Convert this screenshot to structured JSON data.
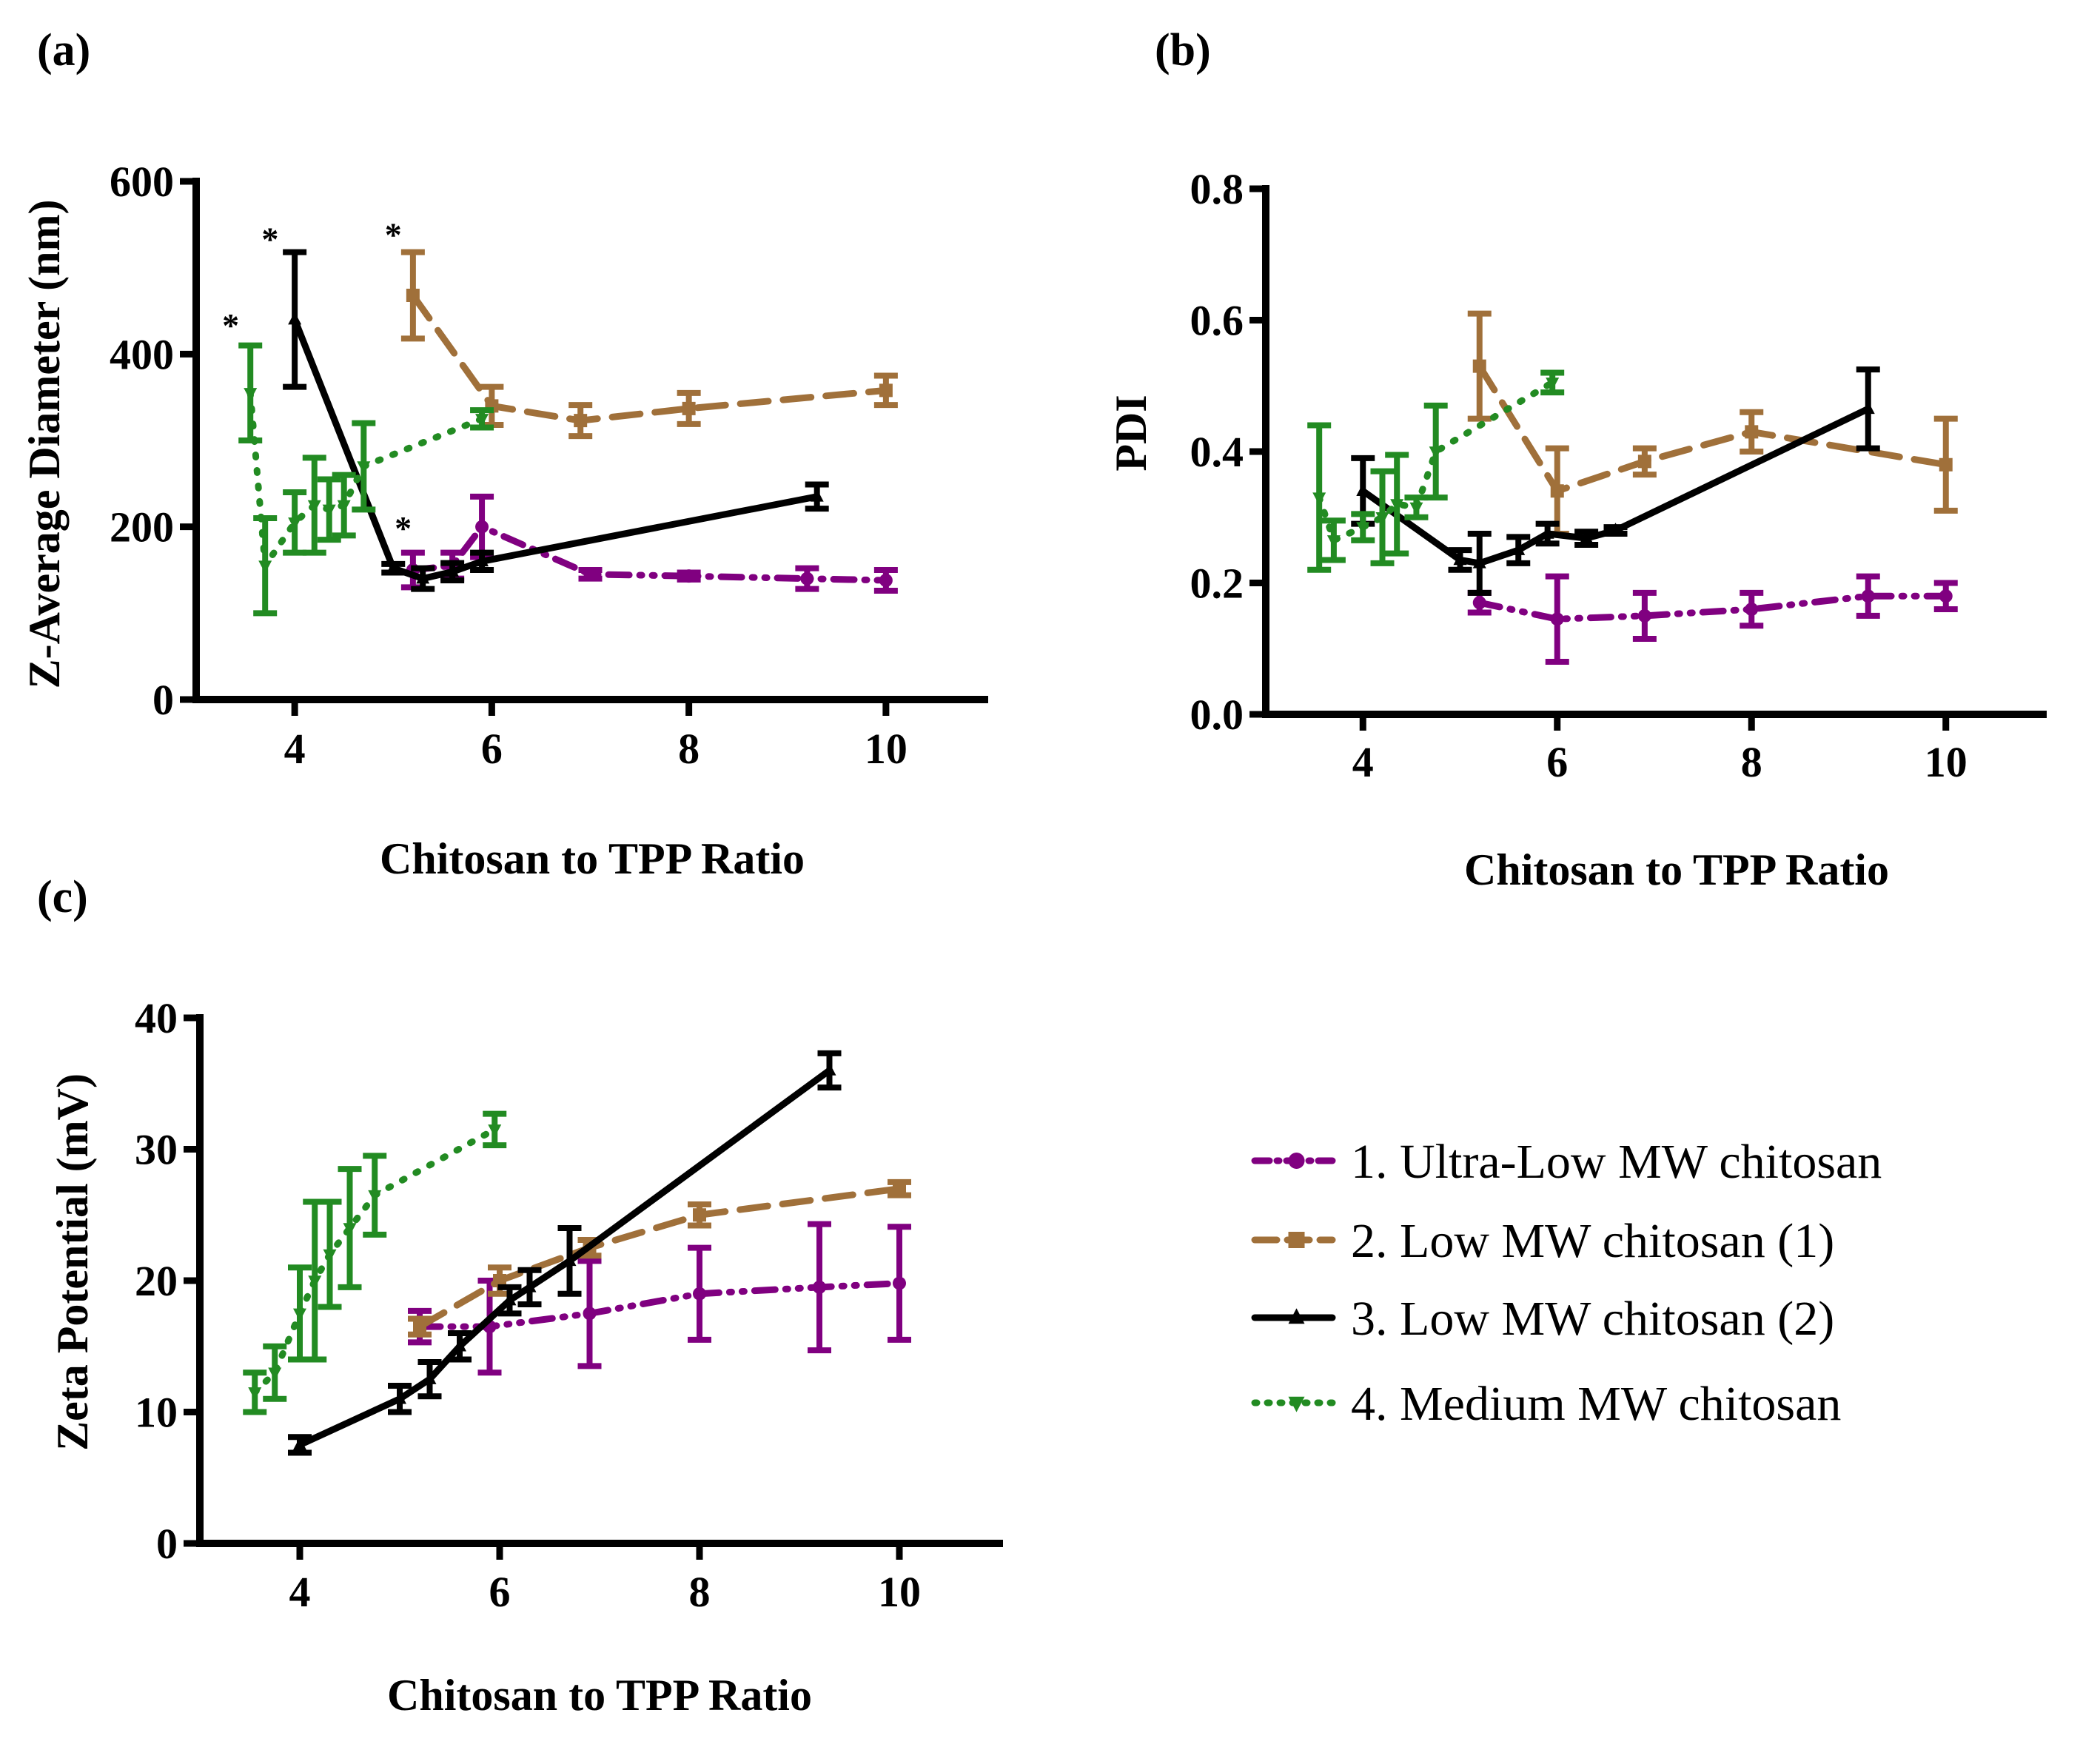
{
  "legend": {
    "items": [
      {
        "label": "1. Ultra-Low MW chitosan",
        "color": "#800080",
        "dash": "dashdotdot",
        "marker": "circle"
      },
      {
        "label": "2. Low MW chitosan (1)",
        "color": "#A0703A",
        "dash": "dash",
        "marker": "square"
      },
      {
        "label": "3. Low MW chitosan (2)",
        "color": "#000000",
        "dash": "solid",
        "marker": "triangle"
      },
      {
        "label": "4. Medium MW chitosan",
        "color": "#228B22",
        "dash": "dot",
        "marker": "triangle-down"
      }
    ]
  },
  "chart_data": [
    {
      "type": "line",
      "panel_label": "(a)",
      "xlabel": "Chitosan to TPP Ratio",
      "ylabel": "Z-Average Diameter (nm)",
      "xlim": [
        3,
        11
      ],
      "ylim": [
        0,
        600
      ],
      "xticks": [
        4,
        6,
        8,
        10
      ],
      "yticks": [
        0,
        200,
        400,
        600
      ],
      "yticklabels": [
        "0",
        "200",
        "400",
        "600"
      ],
      "annotations": [
        {
          "text": "*",
          "x": 3.35,
          "y": 420
        },
        {
          "text": "*",
          "x": 3.75,
          "y": 520
        },
        {
          "text": "*",
          "x": 5.0,
          "y": 525
        },
        {
          "text": "*",
          "x": 5.1,
          "y": 185
        }
      ],
      "series": [
        {
          "name": "1. Ultra-Low MW chitosan",
          "x": [
            5.2,
            5.6,
            5.9,
            7.0,
            8.0,
            9.2,
            10.0
          ],
          "y": [
            150,
            155,
            200,
            145,
            143,
            140,
            138
          ],
          "err": [
            20,
            15,
            35,
            5,
            4,
            12,
            12
          ]
        },
        {
          "name": "2. Low MW chitosan (1)",
          "x": [
            5.2,
            6.0,
            6.9,
            8.0,
            10.0
          ],
          "y": [
            468,
            340,
            323,
            337,
            358
          ],
          "err": [
            50,
            22,
            18,
            18,
            17
          ]
        },
        {
          "name": "3. Low MW chitosan (2)",
          "x": [
            4.0,
            5.0,
            5.3,
            5.6,
            5.9,
            9.3
          ],
          "y": [
            440,
            152,
            140,
            148,
            160,
            235
          ],
          "err": [
            78,
            5,
            12,
            10,
            10,
            14
          ]
        },
        {
          "name": "4. Medium MW chitosan",
          "x": [
            3.55,
            3.7,
            4.0,
            4.2,
            4.35,
            4.5,
            4.7,
            5.9
          ],
          "y": [
            355,
            155,
            205,
            225,
            220,
            225,
            270,
            325
          ],
          "err": [
            55,
            55,
            35,
            55,
            35,
            35,
            50,
            10
          ]
        }
      ]
    },
    {
      "type": "line",
      "panel_label": "(b)",
      "xlabel": "Chitosan to TPP Ratio",
      "ylabel": "PDI",
      "xlim": [
        3,
        11
      ],
      "ylim": [
        0,
        0.8
      ],
      "xticks": [
        4,
        6,
        8,
        10
      ],
      "yticks": [
        0,
        0.2,
        0.4,
        0.6,
        0.8
      ],
      "yticklabels": [
        "0.0",
        "0.2",
        "0.4",
        "0.6",
        "0.8"
      ],
      "series": [
        {
          "name": "1. Ultra-Low MW chitosan",
          "x": [
            5.2,
            6.0,
            6.9,
            8.0,
            9.2,
            10.0
          ],
          "y": [
            0.17,
            0.145,
            0.15,
            0.16,
            0.18,
            0.18
          ],
          "err": [
            0.015,
            0.065,
            0.035,
            0.025,
            0.03,
            0.02
          ]
        },
        {
          "name": "2. Low MW chitosan (1)",
          "x": [
            5.2,
            6.0,
            6.9,
            8.0,
            10.0
          ],
          "y": [
            0.53,
            0.34,
            0.385,
            0.43,
            0.38
          ],
          "err": [
            0.08,
            0.065,
            0.02,
            0.03,
            0.07
          ]
        },
        {
          "name": "3. Low MW chitosan (2)",
          "x": [
            4.0,
            5.0,
            5.2,
            5.6,
            5.9,
            6.3,
            6.6,
            9.2
          ],
          "y": [
            0.34,
            0.235,
            0.23,
            0.25,
            0.275,
            0.268,
            0.28,
            0.465
          ],
          "err": [
            0.05,
            0.015,
            0.045,
            0.02,
            0.015,
            0.01,
            0.005,
            0.06
          ]
        },
        {
          "name": "4. Medium MW chitosan",
          "x": [
            3.55,
            3.7,
            4.0,
            4.2,
            4.35,
            4.55,
            4.75,
            5.95
          ],
          "y": [
            0.33,
            0.265,
            0.285,
            0.3,
            0.32,
            0.315,
            0.4,
            0.505
          ],
          "err": [
            0.11,
            0.03,
            0.02,
            0.07,
            0.075,
            0.015,
            0.07,
            0.015
          ]
        }
      ]
    },
    {
      "type": "line",
      "panel_label": "(c)",
      "xlabel": "Chitosan to TPP Ratio",
      "ylabel": "Zeta Potential (mV)",
      "xlim": [
        3,
        11
      ],
      "ylim": [
        0,
        40
      ],
      "xticks": [
        4,
        6,
        8,
        10
      ],
      "yticks": [
        0,
        10,
        20,
        30,
        40
      ],
      "yticklabels": [
        "0",
        "10",
        "20",
        "30",
        "40"
      ],
      "series": [
        {
          "name": "1. Ultra-Low MW chitosan",
          "x": [
            5.2,
            5.9,
            6.9,
            8.0,
            9.2,
            10.0
          ],
          "y": [
            16.5,
            16.5,
            17.5,
            19.0,
            19.5,
            19.8
          ],
          "err": [
            1.2,
            3.5,
            4.0,
            3.5,
            4.8,
            4.3
          ]
        },
        {
          "name": "2. Low MW chitosan (1)",
          "x": [
            5.2,
            6.0,
            6.9,
            8.0,
            10.0
          ],
          "y": [
            16.5,
            20.0,
            22.5,
            25.0,
            27.0
          ],
          "err": [
            0.6,
            1.0,
            0.6,
            0.8,
            0.5
          ]
        },
        {
          "name": "3. Low MW chitosan (2)",
          "x": [
            4.0,
            5.0,
            5.3,
            5.6,
            6.1,
            6.3,
            6.7,
            9.3
          ],
          "y": [
            7.5,
            11.0,
            12.5,
            15.0,
            18.5,
            19.5,
            21.5,
            36.0
          ],
          "err": [
            0.6,
            1.0,
            1.3,
            1.0,
            1.0,
            1.3,
            2.5,
            1.3
          ]
        },
        {
          "name": "4. Medium MW chitosan",
          "x": [
            3.55,
            3.75,
            4.0,
            4.15,
            4.3,
            4.5,
            4.75,
            5.95
          ],
          "y": [
            11.5,
            13.0,
            17.5,
            20.0,
            22.0,
            24.0,
            26.5,
            31.5
          ],
          "err": [
            1.5,
            2.0,
            3.5,
            6.0,
            4.0,
            4.5,
            3.0,
            1.2
          ]
        }
      ]
    }
  ]
}
